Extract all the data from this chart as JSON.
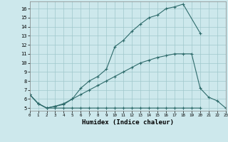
{
  "xlabel": "Humidex (Indice chaleur)",
  "xlim": [
    0,
    23
  ],
  "ylim": [
    4.7,
    16.8
  ],
  "yticks": [
    5,
    6,
    7,
    8,
    9,
    10,
    11,
    12,
    13,
    14,
    15,
    16
  ],
  "xticks": [
    0,
    1,
    2,
    3,
    4,
    5,
    6,
    7,
    8,
    9,
    10,
    11,
    12,
    13,
    14,
    15,
    16,
    17,
    18,
    19,
    20,
    21,
    22,
    23
  ],
  "line_color": "#2e6b6b",
  "bg_color": "#cde8ec",
  "grid_color": "#a0c8cc",
  "line1_x": [
    0,
    1,
    2,
    3,
    4,
    5,
    6,
    7,
    8,
    9,
    10,
    11,
    12,
    13,
    14,
    15,
    16,
    17,
    18,
    20
  ],
  "line1_y": [
    6.5,
    5.5,
    5.0,
    5.2,
    5.4,
    6.0,
    7.2,
    8.0,
    8.5,
    9.3,
    11.8,
    12.5,
    13.5,
    14.3,
    15.0,
    15.3,
    16.0,
    16.2,
    16.5,
    13.3
  ],
  "line2_x": [
    0,
    1,
    2,
    3,
    4,
    5,
    6,
    7,
    8,
    9,
    10,
    11,
    12,
    13,
    14,
    15,
    16,
    17,
    18,
    19,
    20
  ],
  "line2_y": [
    6.5,
    5.5,
    5.0,
    5.0,
    5.0,
    5.0,
    5.0,
    5.0,
    5.0,
    5.0,
    5.0,
    5.0,
    5.0,
    5.0,
    5.0,
    5.0,
    5.0,
    5.0,
    5.0,
    5.0,
    5.0
  ],
  "line3_x": [
    0,
    1,
    2,
    3,
    4,
    5,
    6,
    7,
    8,
    9,
    10,
    11,
    12,
    13,
    14,
    15,
    16,
    17,
    18,
    19,
    20,
    21,
    22,
    23
  ],
  "line3_y": [
    6.5,
    5.5,
    5.0,
    5.2,
    5.5,
    6.0,
    6.5,
    7.0,
    7.5,
    8.0,
    8.5,
    9.0,
    9.5,
    10.0,
    10.3,
    10.6,
    10.8,
    11.0,
    11.0,
    11.0,
    7.2,
    6.2,
    5.8,
    5.0
  ]
}
